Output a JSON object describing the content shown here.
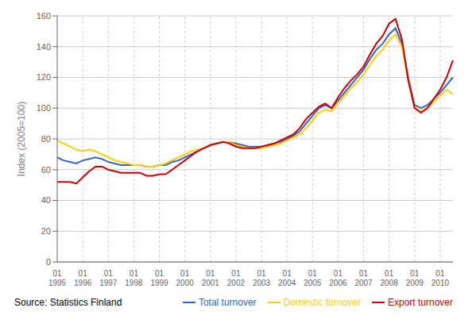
{
  "chart_data": {
    "type": "line",
    "y_label": "Index (2005=100)",
    "annotation": "Source: Statistics Finland",
    "categories": [
      "01\n1995",
      null,
      null,
      null,
      "01\n1996",
      null,
      null,
      null,
      "01\n1997",
      null,
      null,
      null,
      "01\n1998",
      null,
      null,
      null,
      "01\n1999",
      null,
      null,
      null,
      "01\n2000",
      null,
      null,
      null,
      "01\n2001",
      null,
      null,
      null,
      "01\n2002",
      null,
      null,
      null,
      "01\n2003",
      null,
      null,
      null,
      "01\n2004",
      null,
      null,
      null,
      "01\n2005",
      null,
      null,
      null,
      "01\n2006",
      null,
      null,
      null,
      "01\n2007",
      null,
      null,
      null,
      "01\n2008",
      null,
      null,
      null,
      "01\n2009",
      null,
      null,
      null,
      "01\n2010",
      null,
      null
    ],
    "series": [
      {
        "name": "Total turnover",
        "color": "#3366cc",
        "values": [
          68,
          66,
          65,
          64,
          66,
          67,
          68,
          67,
          65,
          64,
          63,
          63,
          63,
          63,
          62,
          62,
          63,
          63,
          65,
          66,
          68,
          70,
          72,
          74,
          76,
          77,
          78,
          78,
          77,
          76,
          75,
          75,
          75,
          76,
          77,
          78,
          80,
          82,
          85,
          90,
          95,
          100,
          102,
          100,
          105,
          110,
          115,
          120,
          125,
          132,
          138,
          142,
          148,
          152,
          142,
          120,
          102,
          100,
          102,
          106,
          110,
          115,
          120
        ]
      },
      {
        "name": "Domestic turnover",
        "color": "#ffcc00",
        "values": [
          79,
          77,
          75,
          73,
          72,
          73,
          72,
          70,
          68,
          66,
          65,
          64,
          63,
          63,
          62,
          62,
          63,
          64,
          66,
          68,
          70,
          72,
          73,
          74,
          76,
          77,
          78,
          78,
          76,
          75,
          74,
          74,
          74,
          75,
          76,
          77,
          79,
          81,
          83,
          87,
          92,
          97,
          99,
          98,
          103,
          108,
          113,
          117,
          122,
          128,
          134,
          138,
          144,
          148,
          140,
          118,
          100,
          98,
          100,
          104,
          108,
          112,
          109
        ]
      },
      {
        "name": "Export turnover",
        "color": "#cc0000",
        "values": [
          52,
          52,
          52,
          51,
          55,
          59,
          62,
          62,
          60,
          59,
          58,
          58,
          58,
          58,
          56,
          56,
          57,
          57,
          60,
          63,
          66,
          69,
          72,
          74,
          76,
          77,
          78,
          77,
          75,
          74,
          74,
          74,
          75,
          76,
          77,
          79,
          81,
          83,
          87,
          93,
          97,
          101,
          103,
          100,
          107,
          113,
          118,
          122,
          127,
          135,
          142,
          147,
          155,
          158,
          145,
          118,
          100,
          97,
          100,
          106,
          112,
          120,
          131
        ]
      }
    ],
    "ylim": [
      0,
      160
    ],
    "yticks": [
      0,
      20,
      40,
      60,
      80,
      100,
      120,
      140,
      160
    ],
    "grid": true,
    "legend": "lower right"
  }
}
